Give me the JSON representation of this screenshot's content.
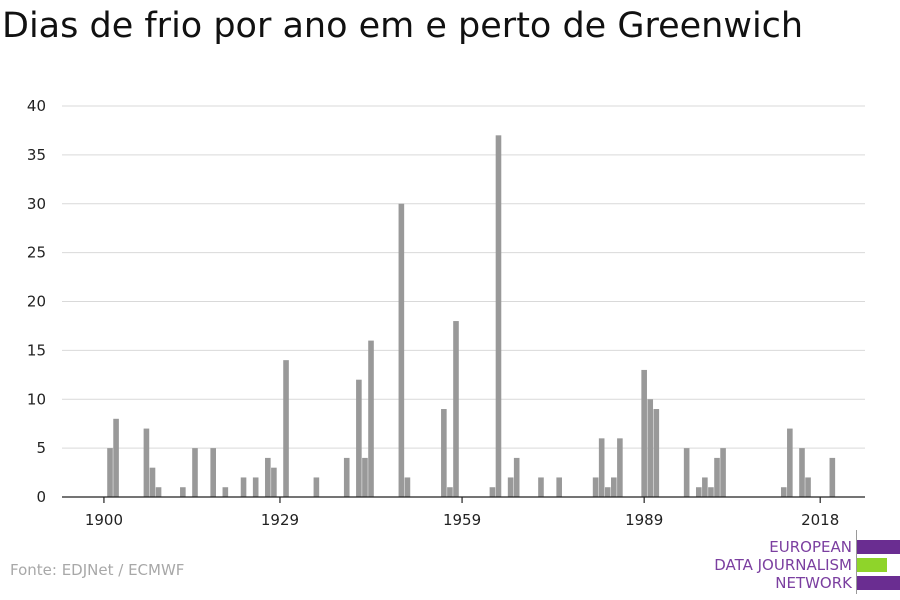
{
  "title": "Dias de frio por ano em e perto de Greenwich",
  "source": "Fonte: EDJNet / ECMWF",
  "logo": {
    "lines": [
      "EUROPEAN",
      "DATA JOURNALISM",
      "NETWORK"
    ],
    "colors": {
      "purple": "#6a2d91",
      "green": "#8fd42a"
    }
  },
  "chart_data": {
    "type": "bar",
    "title": "Dias de frio por ano em e perto de Greenwich",
    "xlabel": "",
    "ylabel": "",
    "ylim": [
      0,
      40
    ],
    "xlim": [
      1900,
      2021
    ],
    "y_ticks": [
      0,
      5,
      10,
      15,
      20,
      25,
      30,
      35,
      40
    ],
    "x_ticks": [
      1900,
      1929,
      1959,
      1989,
      2018
    ],
    "grid": true,
    "bar_color": "#999999",
    "x": [
      1900,
      1901,
      1902,
      1903,
      1904,
      1905,
      1906,
      1907,
      1908,
      1909,
      1910,
      1911,
      1912,
      1913,
      1914,
      1915,
      1916,
      1917,
      1918,
      1919,
      1920,
      1921,
      1922,
      1923,
      1924,
      1925,
      1926,
      1927,
      1928,
      1929,
      1930,
      1931,
      1932,
      1933,
      1934,
      1935,
      1936,
      1937,
      1938,
      1939,
      1940,
      1941,
      1942,
      1943,
      1944,
      1945,
      1946,
      1947,
      1948,
      1949,
      1950,
      1951,
      1952,
      1953,
      1954,
      1955,
      1956,
      1957,
      1958,
      1959,
      1960,
      1961,
      1962,
      1963,
      1964,
      1965,
      1966,
      1967,
      1968,
      1969,
      1970,
      1971,
      1972,
      1973,
      1974,
      1975,
      1976,
      1977,
      1978,
      1979,
      1980,
      1981,
      1982,
      1983,
      1984,
      1985,
      1986,
      1987,
      1988,
      1989,
      1990,
      1991,
      1992,
      1993,
      1994,
      1995,
      1996,
      1997,
      1998,
      1999,
      2000,
      2001,
      2002,
      2003,
      2004,
      2005,
      2006,
      2007,
      2008,
      2009,
      2010,
      2011,
      2012,
      2013,
      2014,
      2015,
      2016,
      2017,
      2018,
      2019,
      2020,
      2021
    ],
    "values": [
      0,
      5,
      8,
      0,
      0,
      0,
      0,
      7,
      3,
      1,
      0,
      0,
      0,
      1,
      0,
      5,
      0,
      0,
      5,
      0,
      1,
      0,
      0,
      2,
      0,
      2,
      0,
      4,
      3,
      0,
      14,
      0,
      0,
      0,
      0,
      2,
      0,
      0,
      0,
      0,
      4,
      0,
      12,
      4,
      16,
      0,
      0,
      0,
      0,
      30,
      2,
      0,
      0,
      0,
      0,
      0,
      9,
      1,
      18,
      0,
      0,
      0,
      0,
      0,
      1,
      37,
      0,
      2,
      4,
      0,
      0,
      0,
      2,
      0,
      0,
      2,
      0,
      0,
      0,
      0,
      0,
      2,
      6,
      1,
      2,
      6,
      0,
      0,
      0,
      13,
      10,
      9,
      0,
      0,
      0,
      0,
      5,
      0,
      1,
      2,
      1,
      4,
      5,
      0,
      0,
      0,
      0,
      0,
      0,
      0,
      0,
      0,
      1,
      7,
      0,
      5,
      2,
      0,
      0,
      0,
      4,
      0
    ]
  }
}
